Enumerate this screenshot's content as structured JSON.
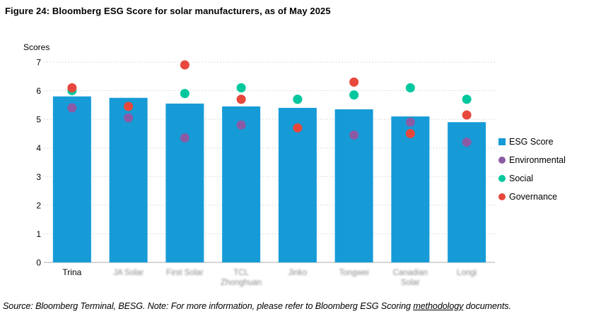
{
  "page": {
    "title": "Figure 24: Bloomberg ESG Score for solar manufacturers, as of May 2025"
  },
  "footer": {
    "prefix": "Source: Bloomberg Terminal, BESG. Note: For more information, please refer to Bloomberg ESG Scoring ",
    "link_text": "methodology",
    "suffix": " documents."
  },
  "colors": {
    "bar_blue": "#169BD7",
    "environmental_purple": "#8A5BA5",
    "social_teal": "#00C79D",
    "governance_red": "#E8473C",
    "gridline": "#CFCFCF",
    "baseline": "#ADADAD",
    "blurred_label_gray": "#8A8A8A"
  },
  "chart_data": {
    "type": "bar",
    "title": "Figure 24: Bloomberg ESG Score for solar manufacturers, as of May 2025",
    "xlabel": "",
    "ylabel": "Scores",
    "ylim": [
      0,
      7
    ],
    "yticks": [
      0,
      1,
      2,
      3,
      4,
      5,
      6,
      7
    ],
    "grid": "horizontal-dotted",
    "legend_position": "right",
    "categories": [
      "Trina",
      "JA Solar",
      "First Solar",
      "TCL Zhonghuan",
      "Jinko",
      "Tongwei",
      "Canadian Solar",
      "Longi"
    ],
    "xlabels": [
      {
        "lines": [
          "Trina"
        ],
        "blurred": false
      },
      {
        "lines": [
          "JA Solar"
        ],
        "blurred": true
      },
      {
        "lines": [
          "First Solar"
        ],
        "blurred": true
      },
      {
        "lines": [
          "TCL",
          "Zhonghuan"
        ],
        "blurred": true
      },
      {
        "lines": [
          "Jinko"
        ],
        "blurred": true
      },
      {
        "lines": [
          "Tongwei"
        ],
        "blurred": true
      },
      {
        "lines": [
          "Canadian",
          "Solar"
        ],
        "blurred": true
      },
      {
        "lines": [
          "Longi"
        ],
        "blurred": true
      }
    ],
    "series": [
      {
        "name": "ESG Score",
        "type": "bar",
        "marker": "square",
        "color": "#169BD7",
        "values": [
          5.8,
          5.75,
          5.55,
          5.45,
          5.4,
          5.35,
          5.1,
          4.9
        ]
      },
      {
        "name": "Environmental",
        "type": "scatter",
        "marker": "circle",
        "color": "#8A5BA5",
        "values": [
          5.4,
          5.05,
          4.35,
          4.8,
          5.7,
          4.45,
          4.9,
          4.2
        ]
      },
      {
        "name": "Social",
        "type": "scatter",
        "marker": "circle",
        "color": "#00C79D",
        "values": [
          6.0,
          5.45,
          5.9,
          6.1,
          5.7,
          5.85,
          6.1,
          5.7
        ]
      },
      {
        "name": "Governance",
        "type": "scatter",
        "marker": "circle",
        "color": "#E8473C",
        "values": [
          6.1,
          5.45,
          6.9,
          5.7,
          4.7,
          6.3,
          4.5,
          5.15
        ]
      }
    ]
  }
}
